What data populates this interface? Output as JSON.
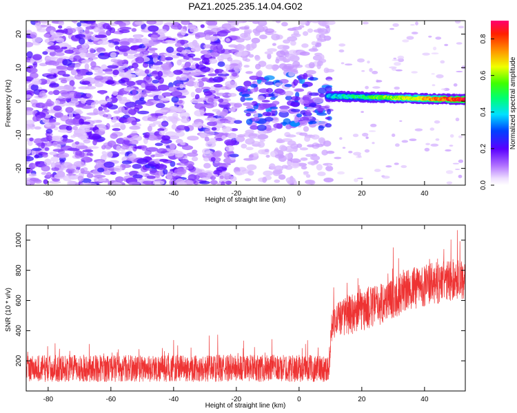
{
  "title": "PAZ1.2025.235.14.04.G02",
  "chart_data": [
    {
      "type": "heatmap",
      "xlabel": "Height of straight line (km)",
      "ylabel": "Frequency (Hz)",
      "xlim": [
        -87,
        53
      ],
      "ylim": [
        -25,
        24
      ],
      "xticks": [
        -80,
        -60,
        -40,
        -20,
        0,
        20,
        40
      ],
      "yticks": [
        -20,
        -10,
        0,
        10,
        20
      ],
      "x_tick_labels": [
        "-80",
        "-60",
        "-40",
        "-20",
        "0",
        "20",
        "40"
      ],
      "y_tick_labels": [
        "-20",
        "-10",
        "0",
        "10",
        "20"
      ],
      "grid": false,
      "colorbar": {
        "label": "Normalized spectral amplitude",
        "range": [
          0,
          0.9
        ],
        "ticks": [
          0.0,
          0.2,
          0.4,
          0.6,
          0.8
        ],
        "tick_labels": [
          "0.0",
          "0.2",
          "0.4",
          "0.6",
          "0.8"
        ],
        "colormap": "rainbow (white-violet-blue-cyan-green-yellow-red-pink)"
      },
      "features": {
        "noise_region_x": [
          -87,
          -20
        ],
        "noise_level": [
          0.05,
          0.25
        ],
        "transition_region_x": [
          -20,
          10
        ],
        "transition_level": [
          0.1,
          0.3
        ],
        "signal_line": {
          "x_start": 9,
          "x_end": 53,
          "frequency_start": 1.5,
          "frequency_end": 0.5,
          "amplitude_start": 0.35,
          "amplitude_end": 0.85
        }
      }
    },
    {
      "type": "line",
      "xlabel": "Height of straight line (km)",
      "ylabel": "SNR (10 * v/v)",
      "xlim": [
        -87,
        53
      ],
      "ylim": [
        0,
        1100
      ],
      "xticks": [
        -80,
        -60,
        -40,
        -20,
        0,
        20,
        40
      ],
      "yticks": [
        200,
        400,
        600,
        800,
        1000
      ],
      "x_tick_labels": [
        "-80",
        "-60",
        "-40",
        "-20",
        "0",
        "20",
        "40"
      ],
      "y_tick_labels": [
        "200",
        "400",
        "600",
        "800",
        "1000"
      ],
      "grid": false,
      "line_color": "#ee3333",
      "series": [
        {
          "x": [
            -87,
            -80,
            -70,
            -60,
            -50,
            -40,
            -30,
            -20,
            -10,
            0,
            9.5,
            10.5,
            15,
            20,
            25,
            30,
            35,
            40,
            45,
            50,
            53
          ],
          "mean": [
            150,
            150,
            150,
            150,
            150,
            150,
            150,
            150,
            150,
            150,
            150,
            460,
            500,
            530,
            570,
            620,
            670,
            700,
            720,
            740,
            750
          ],
          "spread": [
            90,
            90,
            90,
            90,
            90,
            90,
            90,
            90,
            90,
            90,
            90,
            110,
            130,
            140,
            140,
            140,
            140,
            140,
            140,
            140,
            140
          ]
        }
      ]
    }
  ]
}
